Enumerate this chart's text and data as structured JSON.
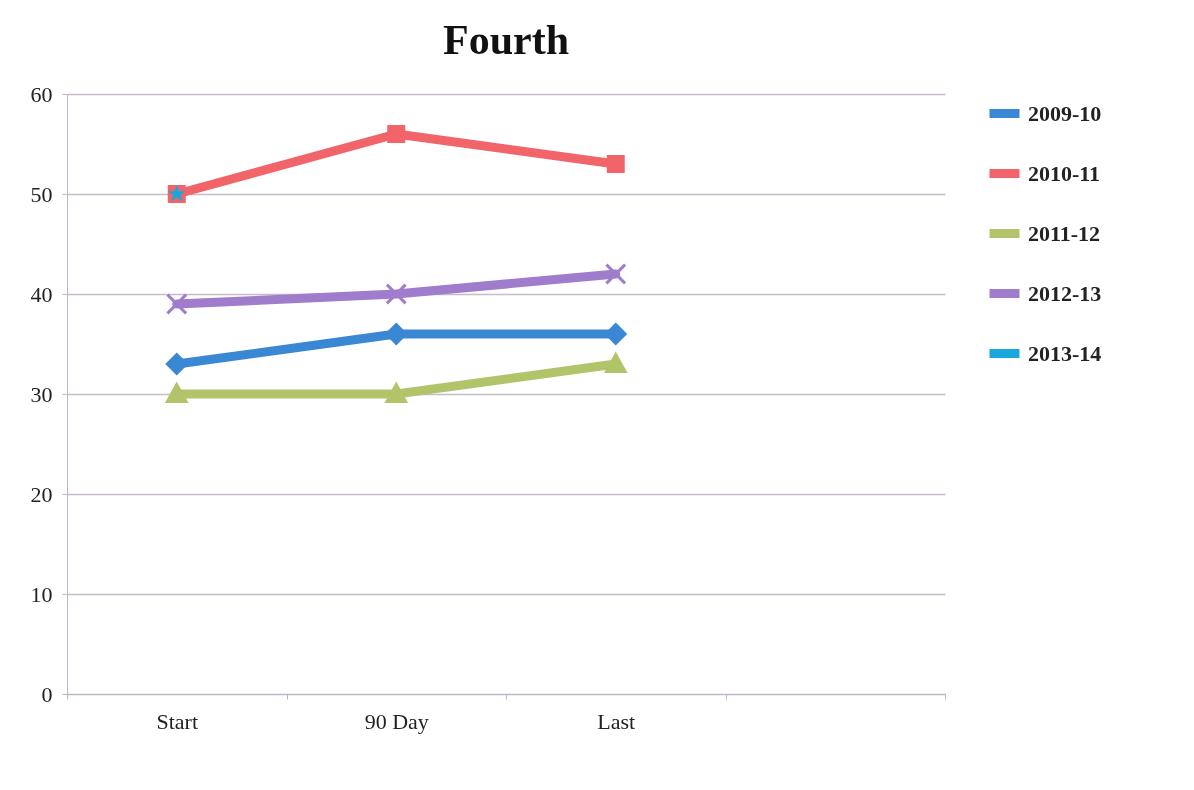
{
  "chart_data": {
    "type": "line",
    "title": "Fourth",
    "categories": [
      "Start",
      "90 Day",
      "Last",
      null
    ],
    "series": [
      {
        "name": "2009-10",
        "color": "#3a87d4",
        "marker": "diamond",
        "values": [
          33,
          36,
          36,
          null
        ]
      },
      {
        "name": "2010-11",
        "color": "#f0646a",
        "marker": "square",
        "values": [
          50,
          56,
          53,
          null
        ]
      },
      {
        "name": "2011-12",
        "color": "#b2c46a",
        "marker": "triangle",
        "values": [
          30,
          30,
          33,
          null
        ]
      },
      {
        "name": "2012-13",
        "color": "#a07ccc",
        "marker": "cross",
        "values": [
          39,
          40,
          42,
          null
        ]
      },
      {
        "name": "2013-14",
        "color": "#1aa8dc",
        "marker": "star",
        "values": [
          50,
          null,
          null,
          null
        ]
      }
    ],
    "ylim": [
      0,
      60
    ],
    "yticks": [
      0,
      10,
      20,
      30,
      40,
      50,
      60
    ],
    "grid": "y",
    "legend": "right"
  }
}
